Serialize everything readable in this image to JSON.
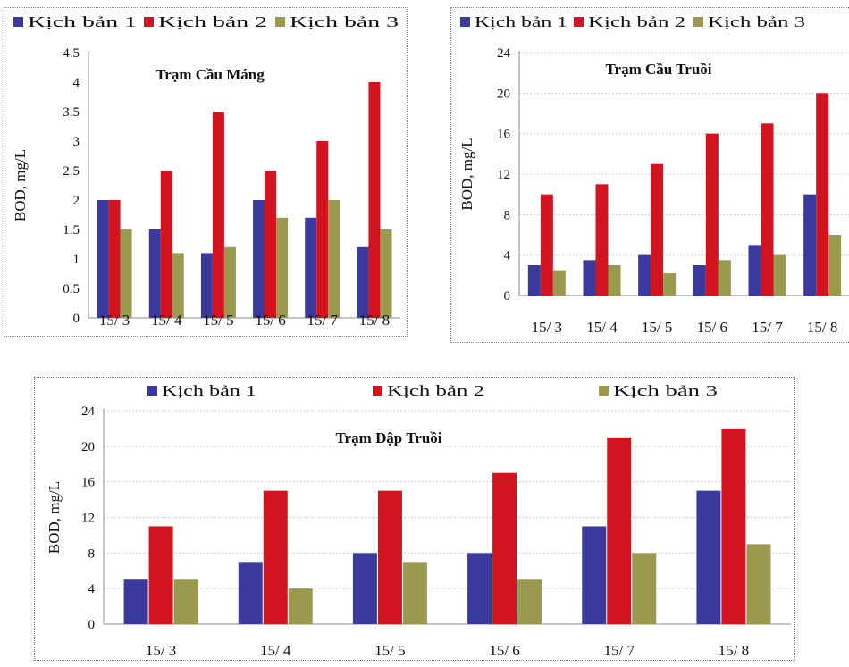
{
  "series_names": [
    "Kịch bản 1",
    "Kịch bản 2",
    "Kịch bản 3"
  ],
  "colors": [
    "#3a3a9e",
    "#d1141f",
    "#9a9a4e"
  ],
  "chart_data": [
    {
      "type": "bar",
      "title": "Trạm Cầu Máng",
      "ylabel": "BOD, mg/L",
      "categories": [
        "15/ 3",
        "15/ 4",
        "15/ 5",
        "15/ 6",
        "15/ 7",
        "15/ 8"
      ],
      "ylim": [
        0,
        4.5
      ],
      "yticks": [
        "0",
        "0.5",
        "1",
        "1.5",
        "2",
        "2.5",
        "3",
        "3.5",
        "4",
        "4.5"
      ],
      "legend": [
        "Kịch bản 1",
        "Kịch bản 2",
        "Kịch bản 3"
      ],
      "legend_position": "top",
      "series": [
        {
          "name": "Kịch bản 1",
          "values": [
            2.0,
            1.5,
            1.1,
            2.0,
            1.7,
            1.2
          ]
        },
        {
          "name": "Kịch bản 2",
          "values": [
            2.0,
            2.5,
            3.5,
            2.5,
            3.0,
            4.0
          ]
        },
        {
          "name": "Kịch bản 3",
          "values": [
            1.5,
            1.1,
            1.2,
            1.7,
            2.0,
            1.5
          ]
        }
      ]
    },
    {
      "type": "bar",
      "title": "Trạm Cầu Truồi",
      "ylabel": "BOD, mg/L",
      "categories": [
        "15/ 3",
        "15/ 4",
        "15/ 5",
        "15/ 6",
        "15/ 7",
        "15/ 8"
      ],
      "ylim": [
        0,
        24
      ],
      "yticks": [
        "0",
        "4",
        "8",
        "12",
        "16",
        "20",
        "24"
      ],
      "legend": [
        "Kịch bản 1",
        "Kịch bản 2",
        "Kịch bản 3"
      ],
      "legend_position": "top",
      "series": [
        {
          "name": "Kịch bản 1",
          "values": [
            3.0,
            3.5,
            4.0,
            3.0,
            5.0,
            10.0
          ]
        },
        {
          "name": "Kịch bản 2",
          "values": [
            10.0,
            11.0,
            13.0,
            16.0,
            17.0,
            20.0
          ]
        },
        {
          "name": "Kịch bản 3",
          "values": [
            2.5,
            3.0,
            2.2,
            3.5,
            4.0,
            6.0
          ]
        }
      ]
    },
    {
      "type": "bar",
      "title": "Trạm Đập  Truồi",
      "ylabel": "BOD, mg/L",
      "categories": [
        "15/ 3",
        "15/ 4",
        "15/ 5",
        "15/ 6",
        "15/ 7",
        "15/ 8"
      ],
      "ylim": [
        0,
        24
      ],
      "yticks": [
        "0",
        "4",
        "8",
        "12",
        "16",
        "20",
        "24"
      ],
      "legend": [
        "Kịch bản 1",
        "Kịch bản 2",
        "Kịch bản 3"
      ],
      "legend_position": "top",
      "series": [
        {
          "name": "Kịch bản 1",
          "values": [
            5.0,
            7.0,
            8.0,
            8.0,
            11.0,
            15.0
          ]
        },
        {
          "name": "Kịch bản 2",
          "values": [
            11.0,
            15.0,
            15.0,
            17.0,
            21.0,
            22.0
          ]
        },
        {
          "name": "Kịch bản 3",
          "values": [
            5.0,
            4.0,
            7.0,
            5.0,
            8.0,
            9.0
          ]
        }
      ]
    }
  ]
}
